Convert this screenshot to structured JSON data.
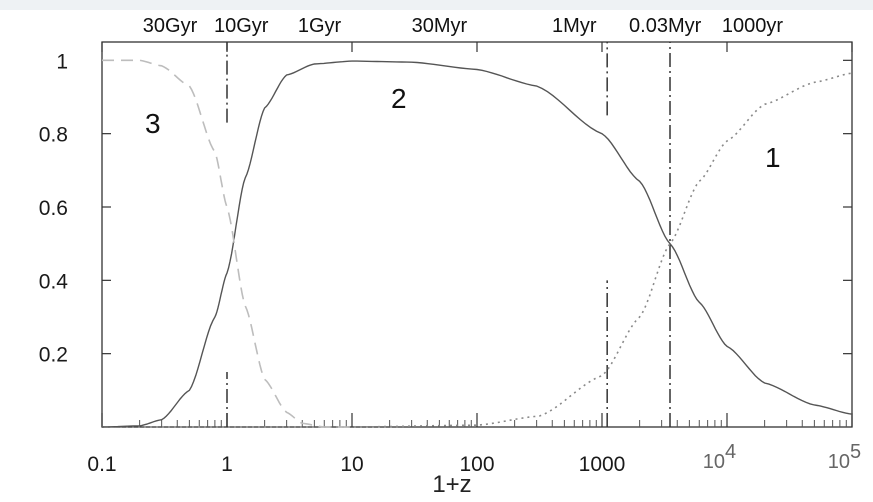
{
  "chart_data": {
    "type": "line",
    "xscale": "log",
    "xlim": [
      0.1,
      100000
    ],
    "ylim": [
      0,
      1.05
    ],
    "xlabel": "1+z",
    "ylabel": "",
    "title": "",
    "grid": false,
    "x_ticks": [
      {
        "value": 0.1,
        "label": "0.1"
      },
      {
        "value": 1,
        "label": "1"
      },
      {
        "value": 10,
        "label": "10"
      },
      {
        "value": 100,
        "label": "100"
      },
      {
        "value": 1000,
        "label": "1000"
      },
      {
        "value": 10000,
        "label": "10",
        "exponent": "4"
      },
      {
        "value": 100000,
        "label": "10",
        "exponent": "5"
      }
    ],
    "y_ticks": [
      {
        "value": 0.2,
        "label": "0.2"
      },
      {
        "value": 0.4,
        "label": "0.4"
      },
      {
        "value": 0.6,
        "label": "0.6"
      },
      {
        "value": 0.8,
        "label": "0.8"
      },
      {
        "value": 1.0,
        "label": "1"
      }
    ],
    "top_axis_labels": [
      {
        "x": 0.35,
        "label": "30Gyr"
      },
      {
        "x": 1.3,
        "label": "10Gyr"
      },
      {
        "x": 5.5,
        "label": "1Gyr"
      },
      {
        "x": 50,
        "label": "30Myr"
      },
      {
        "x": 600,
        "label": "1Myr"
      },
      {
        "x": 3200,
        "label": "0.03Myr"
      },
      {
        "x": 16000,
        "label": "1000yr"
      }
    ],
    "vertical_markers": [
      {
        "x": 1.0,
        "segments": [
          [
            0.0,
            0.15
          ],
          [
            0.83,
            1.05
          ]
        ]
      },
      {
        "x": 1100,
        "segments": [
          [
            0.0,
            0.4
          ],
          [
            0.85,
            1.05
          ]
        ]
      },
      {
        "x": 3500,
        "segments": [
          [
            0.0,
            1.05
          ]
        ]
      }
    ],
    "series": [
      {
        "label": "1",
        "style": "dotted",
        "color": "#8a8a8a",
        "x": [
          0.1,
          1,
          10,
          100,
          316,
          1000,
          2000,
          3500,
          6000,
          10000,
          20000,
          50000,
          100000
        ],
        "y": [
          0.0,
          0.0,
          0.0,
          0.005,
          0.03,
          0.14,
          0.3,
          0.5,
          0.67,
          0.78,
          0.88,
          0.94,
          0.965
        ]
      },
      {
        "label": "2",
        "style": "solid",
        "color": "#555555",
        "x": [
          0.1,
          0.2,
          0.3,
          0.5,
          0.8,
          1.0,
          1.4,
          2,
          3,
          5,
          10,
          30,
          100,
          300,
          1000,
          2000,
          3500,
          6000,
          10000,
          20000,
          50000,
          100000
        ],
        "y": [
          0.0,
          0.003,
          0.02,
          0.1,
          0.3,
          0.42,
          0.68,
          0.87,
          0.96,
          0.99,
          0.998,
          0.995,
          0.975,
          0.93,
          0.8,
          0.67,
          0.5,
          0.34,
          0.22,
          0.12,
          0.06,
          0.035
        ]
      },
      {
        "label": "3",
        "style": "dashed",
        "color": "#bdbdbd",
        "x": [
          0.1,
          0.2,
          0.3,
          0.5,
          0.8,
          1.0,
          1.4,
          2,
          3,
          4,
          6,
          10
        ],
        "y": [
          1.0,
          1.0,
          0.985,
          0.93,
          0.75,
          0.6,
          0.33,
          0.13,
          0.04,
          0.01,
          0.0,
          0.0
        ]
      }
    ]
  }
}
